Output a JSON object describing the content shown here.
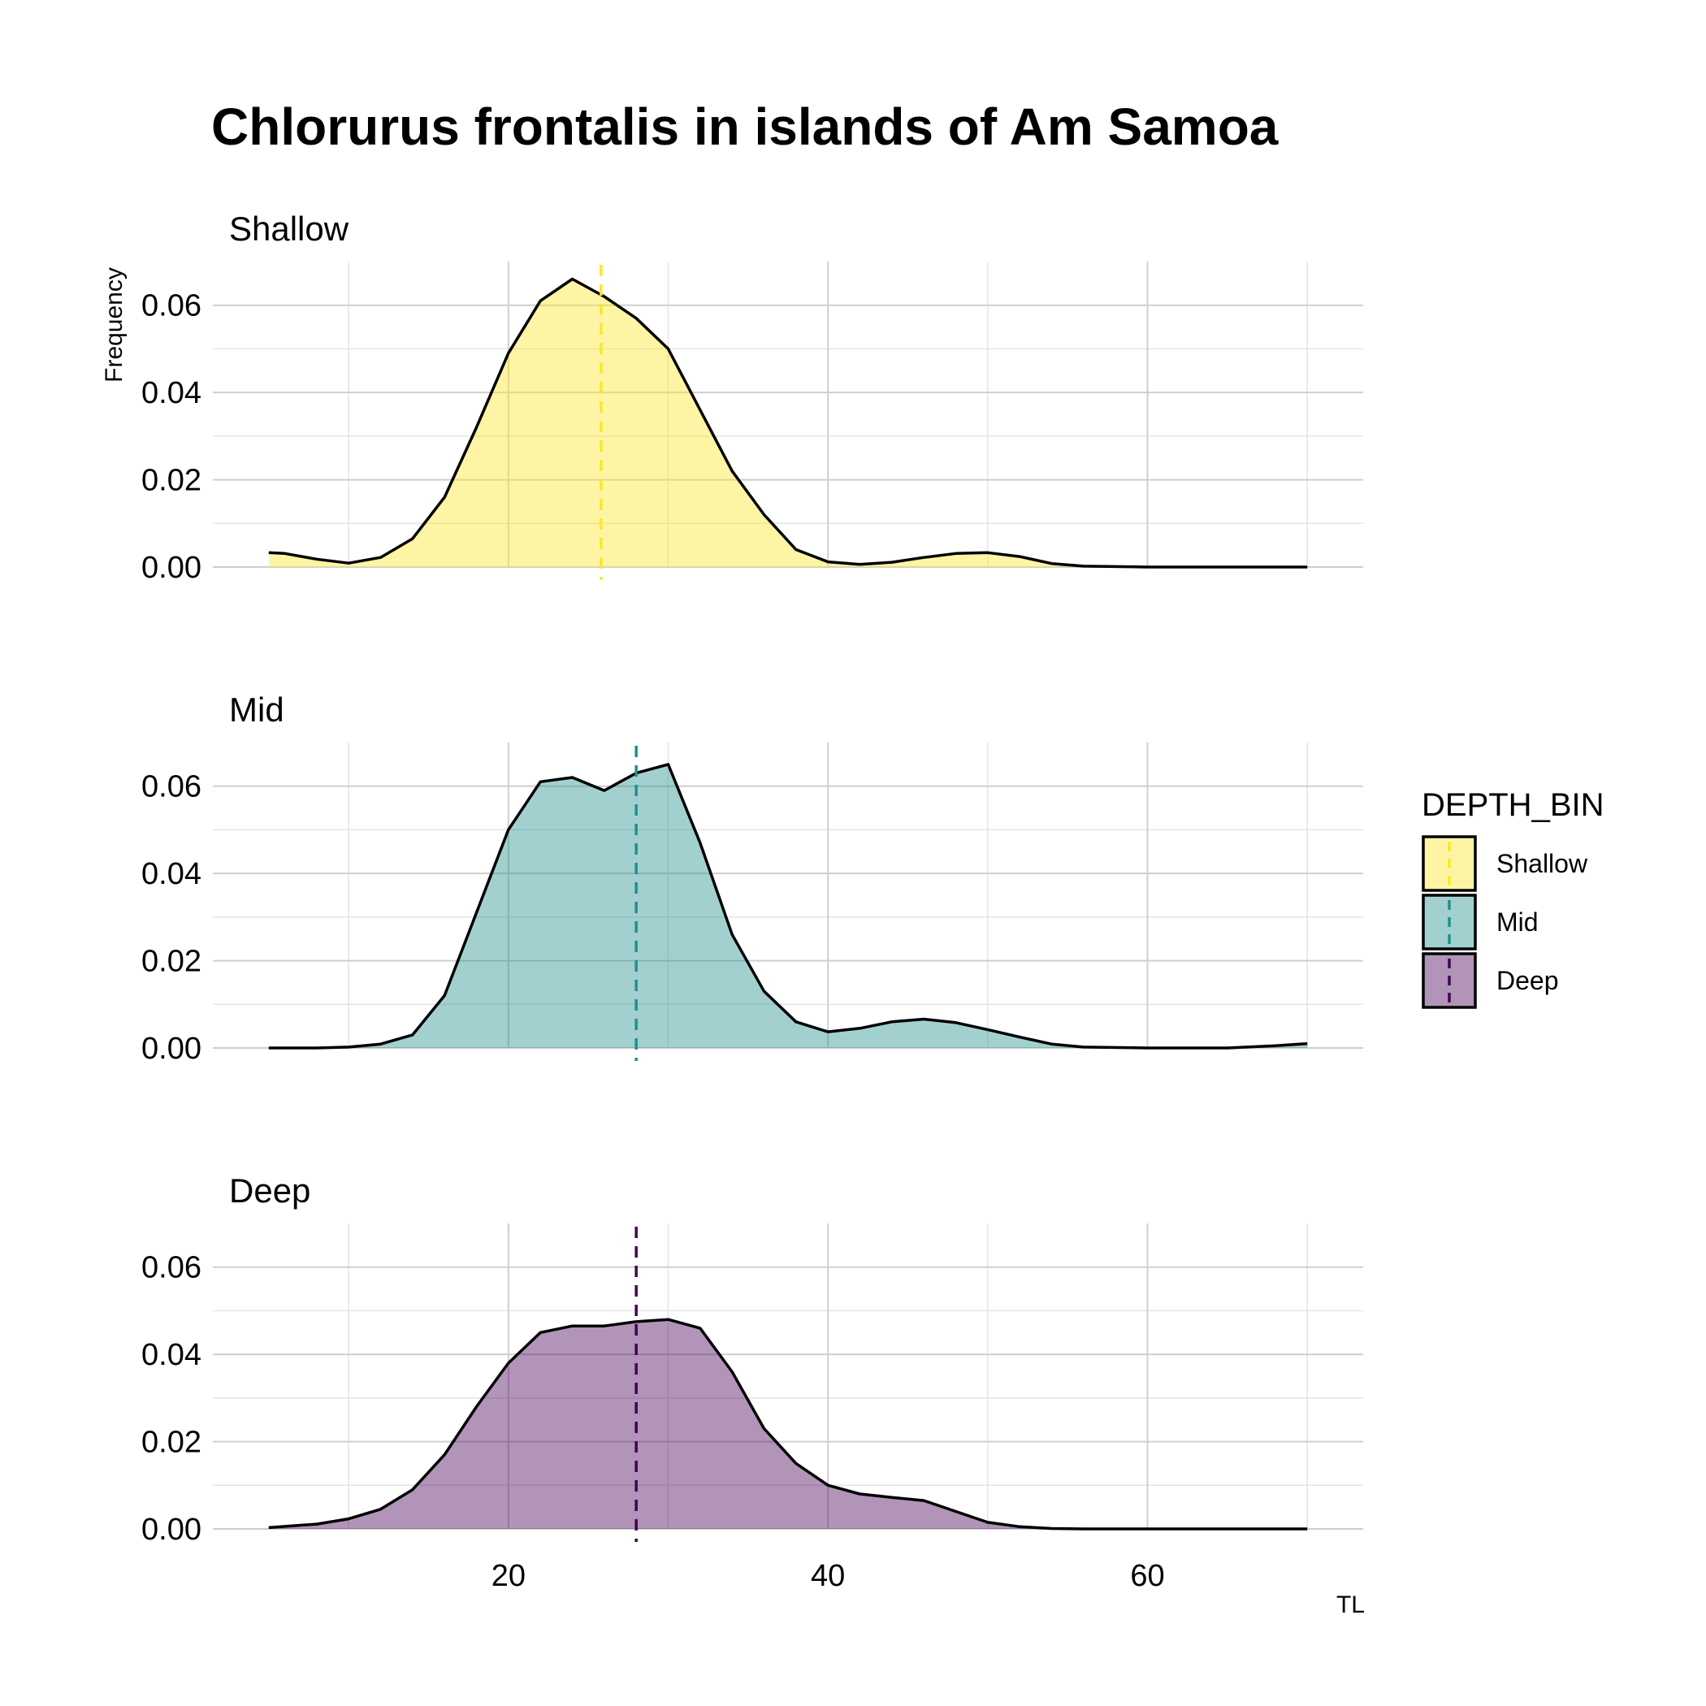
{
  "chart_data": {
    "type": "area",
    "title": "Chlorurus frontalis in islands of Am Samoa",
    "xlabel": "TL",
    "ylabel": "Frequency",
    "xlim": [
      1.5,
      73.5
    ],
    "ylim": [
      0,
      0.07
    ],
    "x_ticks": [
      "20",
      "40",
      "60"
    ],
    "x_tick_values": [
      20,
      40,
      60
    ],
    "y_ticks": [
      "0.00",
      "0.02",
      "0.04",
      "0.06"
    ],
    "y_tick_values": [
      0,
      0.02,
      0.04,
      0.06
    ],
    "grid": true,
    "legend": {
      "title": "DEPTH_BIN",
      "position": "right",
      "entries": [
        "Shallow",
        "Mid",
        "Deep"
      ]
    },
    "panels": [
      {
        "label": "Shallow",
        "fill": "#FDE725",
        "line": "#FDE725",
        "mean": 25.8,
        "x": [
          5,
          6,
          8,
          10,
          12,
          14,
          16,
          18,
          20,
          22,
          24,
          26,
          28,
          30,
          32,
          34,
          36,
          38,
          40,
          42,
          44,
          46,
          48,
          50,
          52,
          54,
          56,
          60,
          65,
          70
        ],
        "y": [
          0.0033,
          0.0031,
          0.0018,
          0.0009,
          0.0022,
          0.0065,
          0.016,
          0.032,
          0.049,
          0.061,
          0.066,
          0.062,
          0.057,
          0.05,
          0.036,
          0.022,
          0.012,
          0.004,
          0.0012,
          0.0006,
          0.0011,
          0.0022,
          0.0031,
          0.0033,
          0.0024,
          0.0008,
          0.0002,
          0.0,
          0.0,
          0.0
        ]
      },
      {
        "label": "Mid",
        "fill": "#21908C",
        "line": "#21908C",
        "mean": 28.0,
        "x": [
          5,
          8,
          10,
          12,
          14,
          16,
          18,
          20,
          22,
          24,
          26,
          28,
          30,
          32,
          34,
          36,
          38,
          40,
          42,
          44,
          46,
          48,
          50,
          52,
          54,
          56,
          60,
          65,
          68,
          70
        ],
        "y": [
          0.0,
          0.0,
          0.0002,
          0.0009,
          0.003,
          0.012,
          0.031,
          0.05,
          0.061,
          0.062,
          0.059,
          0.063,
          0.065,
          0.047,
          0.026,
          0.013,
          0.006,
          0.0037,
          0.0045,
          0.006,
          0.0066,
          0.0058,
          0.0042,
          0.0025,
          0.0009,
          0.0002,
          0.0,
          0.0,
          0.0005,
          0.001
        ]
      },
      {
        "label": "Deep",
        "fill": "#440154",
        "line": "#440154",
        "mean": 28.0,
        "x": [
          5,
          8,
          10,
          12,
          14,
          16,
          18,
          20,
          22,
          24,
          26,
          28,
          30,
          32,
          34,
          36,
          38,
          40,
          42,
          44,
          46,
          48,
          50,
          52,
          54,
          56,
          60,
          65,
          70
        ],
        "y": [
          0.0003,
          0.0011,
          0.0023,
          0.0045,
          0.009,
          0.017,
          0.028,
          0.038,
          0.045,
          0.0465,
          0.0465,
          0.0475,
          0.048,
          0.046,
          0.036,
          0.023,
          0.015,
          0.01,
          0.008,
          0.0072,
          0.0065,
          0.004,
          0.0015,
          0.0005,
          0.0001,
          0.0,
          0.0,
          0.0,
          0.0
        ]
      }
    ]
  }
}
